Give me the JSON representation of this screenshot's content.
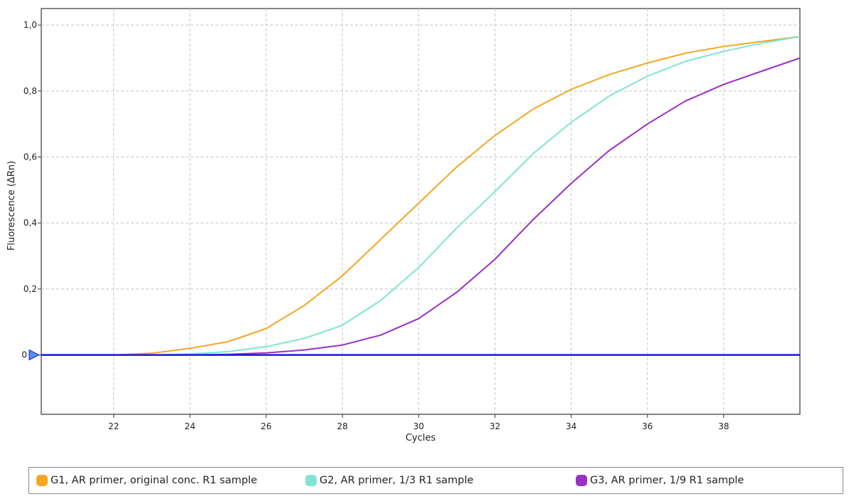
{
  "chart_data": {
    "type": "line",
    "xlabel": "Cycles",
    "ylabel": "Fluorescence (ΔRn)",
    "xlim": [
      20.1,
      40.0
    ],
    "ylim": [
      -0.18,
      1.05
    ],
    "x_ticks": [
      22,
      24,
      26,
      28,
      30,
      32,
      34,
      36,
      38
    ],
    "x_tick_labels": [
      "22",
      "24",
      "26",
      "28",
      "30",
      "32",
      "34",
      "36",
      "38"
    ],
    "y_ticks": [
      0,
      0.2,
      0.4,
      0.6,
      0.8,
      1.0
    ],
    "y_tick_labels": [
      "0",
      "0,2",
      "0,4",
      "0,6",
      "0,8",
      "1,0"
    ],
    "grid": true,
    "legend_position": "bottom",
    "threshold": {
      "value": 0.0,
      "color": "#1a1ad6"
    },
    "x": [
      20,
      21,
      22,
      23,
      24,
      25,
      26,
      27,
      28,
      29,
      30,
      31,
      32,
      33,
      34,
      35,
      36,
      37,
      38,
      39,
      40
    ],
    "series": [
      {
        "name": "G1, AR primer, original conc. R1 sample",
        "color": "#f5a623",
        "values": [
          0.0,
          0.0,
          0.0,
          0.005,
          0.02,
          0.04,
          0.08,
          0.15,
          0.24,
          0.35,
          0.46,
          0.57,
          0.665,
          0.745,
          0.805,
          0.85,
          0.885,
          0.915,
          0.935,
          0.95,
          0.965
        ]
      },
      {
        "name": "G2, AR primer, 1/3 R1 sample",
        "color": "#7fe5d2",
        "values": [
          0.0,
          0.0,
          0.0,
          0.0,
          0.003,
          0.01,
          0.025,
          0.05,
          0.09,
          0.165,
          0.265,
          0.385,
          0.495,
          0.61,
          0.705,
          0.785,
          0.845,
          0.89,
          0.92,
          0.945,
          0.965
        ]
      },
      {
        "name": "G3, AR primer, 1/9 R1 sample",
        "color": "#9b2fc4",
        "values": [
          0.0,
          0.0,
          0.0,
          0.0,
          0.0,
          0.002,
          0.006,
          0.015,
          0.03,
          0.06,
          0.11,
          0.19,
          0.29,
          0.41,
          0.52,
          0.62,
          0.7,
          0.77,
          0.82,
          0.86,
          0.9
        ]
      }
    ]
  },
  "legend": {
    "items": [
      {
        "label": "G1, AR primer, original conc. R1 sample",
        "color": "#f5a623"
      },
      {
        "label": "G2, AR primer, 1/3 R1 sample",
        "color": "#7fe5d2"
      },
      {
        "label": "G3, AR primer, 1/9 R1 sample",
        "color": "#9b2fc4"
      }
    ]
  }
}
